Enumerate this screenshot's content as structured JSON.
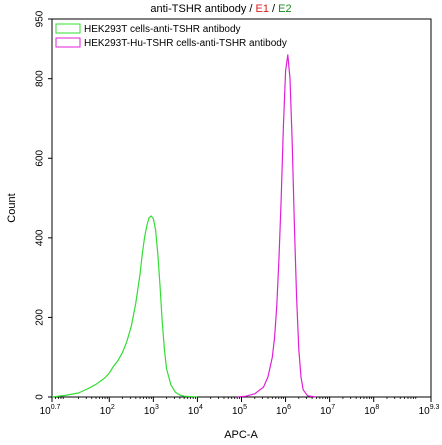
{
  "chart_data": {
    "type": "line",
    "title": {
      "main": "anti-TSHR antibody",
      "separator1": " / ",
      "gate1": "E1",
      "separator2": " / ",
      "gate2": "E2",
      "gate1_color": "#d42020",
      "gate2_color": "#1a8a1a"
    },
    "xlabel": "APC-A",
    "ylabel": "Count",
    "xscale": "log",
    "xlim_log10": [
      0.7,
      9.3
    ],
    "ylim": [
      0,
      950
    ],
    "y_ticks": [
      "0",
      "200",
      "400",
      "600",
      "800",
      "950"
    ],
    "y_tick_values": [
      0,
      200,
      400,
      600,
      800,
      950
    ],
    "x_ticks": [
      {
        "base": "10",
        "exp": "0.7",
        "log": 0.7
      },
      {
        "base": "10",
        "exp": "2",
        "log": 2
      },
      {
        "base": "10",
        "exp": "3",
        "log": 3
      },
      {
        "base": "10",
        "exp": "4",
        "log": 4
      },
      {
        "base": "10",
        "exp": "5",
        "log": 5
      },
      {
        "base": "10",
        "exp": "6",
        "log": 6
      },
      {
        "base": "10",
        "exp": "7",
        "log": 7
      },
      {
        "base": "10",
        "exp": "8",
        "log": 8
      },
      {
        "base": "10",
        "exp": "9.3",
        "log": 9.3
      }
    ],
    "legend": "top-left",
    "series": [
      {
        "name": "HEK293T cells-anti-TSHR antibody",
        "color": "#33dd33",
        "x_log10": [
          0.7,
          1.0,
          1.3,
          1.5,
          1.7,
          1.9,
          2.0,
          2.1,
          2.2,
          2.3,
          2.4,
          2.5,
          2.6,
          2.7,
          2.75,
          2.8,
          2.85,
          2.9,
          2.95,
          3.0,
          3.05,
          3.1,
          3.15,
          3.2,
          3.25,
          3.3,
          3.4,
          3.5,
          3.6,
          3.7,
          4.0
        ],
        "y": [
          0,
          4,
          10,
          20,
          32,
          48,
          60,
          78,
          92,
          112,
          140,
          178,
          235,
          310,
          360,
          400,
          430,
          450,
          455,
          448,
          420,
          360,
          280,
          190,
          120,
          70,
          30,
          12,
          5,
          2,
          0
        ]
      },
      {
        "name": "HEK293T-Hu-TSHR cells-anti-TSHR antibody",
        "color": "#e020d8",
        "x_log10": [
          4.9,
          5.1,
          5.3,
          5.5,
          5.6,
          5.7,
          5.75,
          5.8,
          5.85,
          5.9,
          5.95,
          6.0,
          6.05,
          6.1,
          6.15,
          6.2,
          6.25,
          6.3,
          6.35,
          6.4,
          6.5,
          6.7
        ],
        "y": [
          0,
          2,
          8,
          25,
          50,
          100,
          150,
          230,
          350,
          500,
          680,
          820,
          860,
          800,
          640,
          430,
          250,
          120,
          50,
          18,
          3,
          0
        ]
      }
    ]
  }
}
